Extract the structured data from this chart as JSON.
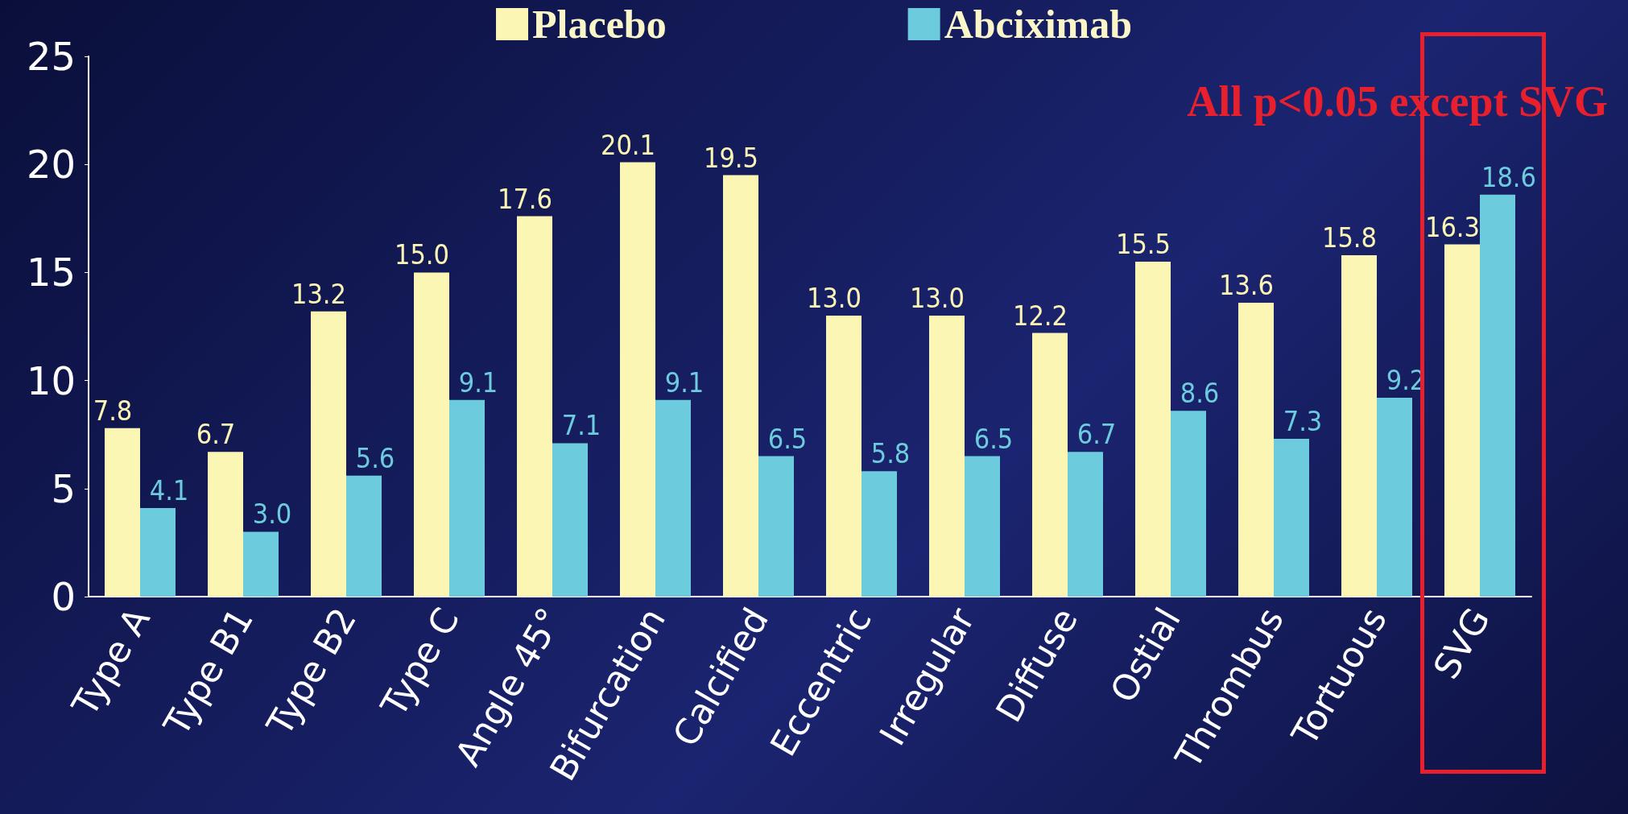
{
  "chart_data": {
    "type": "bar",
    "categories": [
      "Type A",
      "Type B1",
      "Type B2",
      "Type C",
      "Angle 45°",
      "Bifurcation",
      "Calcified",
      "Eccentric",
      "Irregular",
      "Diffuse",
      "Ostial",
      "Thrombus",
      "Tortuous",
      "SVG"
    ],
    "series": [
      {
        "name": "Placebo",
        "color": "#fbf6b4",
        "values": [
          7.8,
          6.7,
          13.2,
          15.0,
          17.6,
          20.1,
          19.5,
          13.0,
          13.0,
          12.2,
          15.5,
          13.6,
          15.8,
          16.3
        ],
        "value_labels": [
          "7.8",
          "6.7",
          "13.2",
          "15.0",
          "17.6",
          "20.1",
          "19.5",
          "13.0",
          "13.0",
          "12.2",
          "15.5",
          "13.6",
          "15.8",
          "16.3"
        ]
      },
      {
        "name": "Abciximab",
        "color": "#6ccbdc",
        "values": [
          4.1,
          3.0,
          5.6,
          9.1,
          7.1,
          9.1,
          6.5,
          5.8,
          6.5,
          6.7,
          8.6,
          7.3,
          9.2,
          18.6
        ],
        "value_labels": [
          "4.1",
          "3.0",
          "5.6",
          "9.1",
          "7.1",
          "9.1",
          "6.5",
          "5.8",
          "6.5",
          "6.7",
          "8.6",
          "7.3",
          "9.2",
          "18.6"
        ]
      }
    ],
    "ylim": [
      0,
      25
    ],
    "yticks": [
      0,
      5,
      10,
      15,
      20,
      25
    ],
    "grid": false,
    "legend": "top",
    "annotations": [
      "All p<0.05 except SVG"
    ]
  }
}
